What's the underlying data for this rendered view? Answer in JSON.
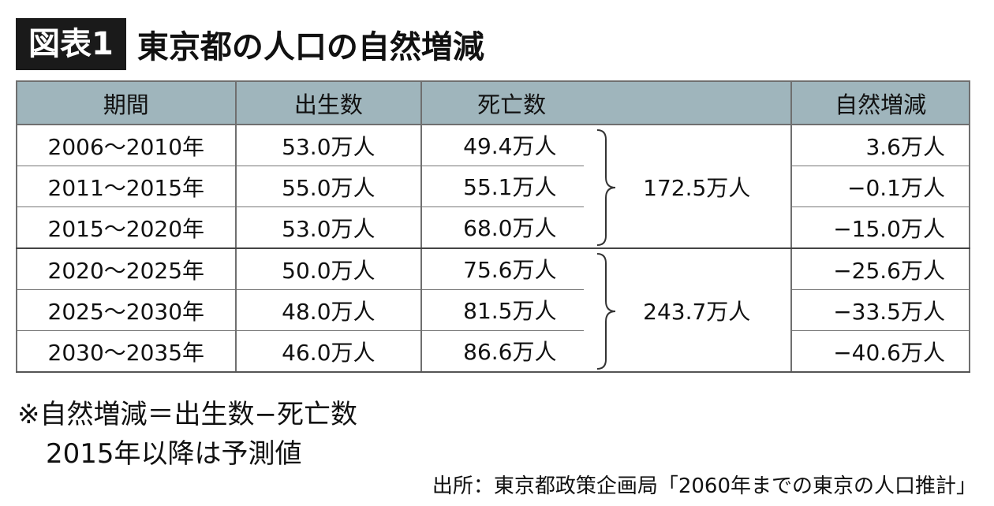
{
  "figure": {
    "tag": "図表1",
    "title": "東京都の人口の自然増減"
  },
  "table": {
    "headers": [
      "期間",
      "出生数",
      "死亡数",
      "自然増減"
    ],
    "rows": [
      {
        "period": "2006〜2010年",
        "births": "53.0万人",
        "deaths": "49.4万人",
        "natural": "3.6万人"
      },
      {
        "period": "2011〜2015年",
        "births": "55.0万人",
        "deaths": "55.1万人",
        "natural": "−0.1万人"
      },
      {
        "period": "2015〜2020年",
        "births": "53.0万人",
        "deaths": "68.0万人",
        "natural": "−15.0万人"
      },
      {
        "period": "2020〜2025年",
        "births": "50.0万人",
        "deaths": "75.6万人",
        "natural": "−25.6万人"
      },
      {
        "period": "2025〜2030年",
        "births": "48.0万人",
        "deaths": "81.5万人",
        "natural": "−33.5万人"
      },
      {
        "period": "2030〜2035年",
        "births": "46.0万人",
        "deaths": "86.6万人",
        "natural": "−40.6万人"
      }
    ],
    "group_totals": [
      "172.5万人",
      "243.7万人"
    ]
  },
  "notes": {
    "line1": "※自然増減＝出生数−死亡数",
    "line2": "2015年以降は予測値"
  },
  "source": "出所：東京都政策企画局「2060年までの東京の人口推計」"
}
